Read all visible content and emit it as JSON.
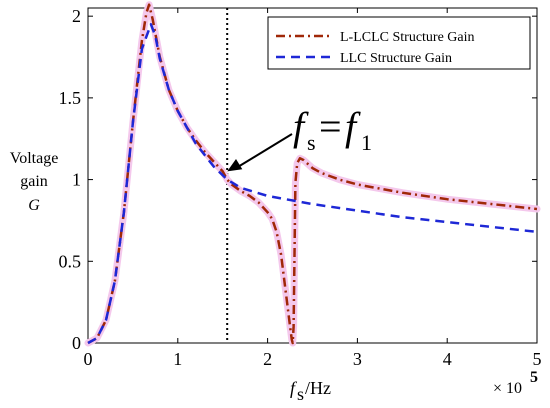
{
  "chart_data": {
    "type": "line",
    "xlim": [
      0,
      5
    ],
    "ylim": [
      0,
      2.05
    ],
    "x_ticks": [
      "0",
      "1",
      "2",
      "3",
      "4",
      "5"
    ],
    "y_ticks": [
      "0",
      "0.5",
      "1",
      "1.5",
      "2"
    ],
    "x_ticks_values": [
      0,
      1,
      2,
      3,
      4,
      5
    ],
    "y_ticks_values": [
      0,
      0.5,
      1,
      1.5,
      2
    ],
    "ylabel": {
      "line1": "Voltage",
      "line2": "gain",
      "line3": "G"
    },
    "xlabel": {
      "main": "f",
      "sub": "s",
      "unit": "/Hz"
    },
    "x_multiplier": {
      "prefix": "× 10",
      "exponent": "5"
    },
    "grid": false,
    "legend_position": "top-right",
    "series": [
      {
        "name": "L-LCLC Structure Gain",
        "color": "#a02808",
        "style": "dash-dot",
        "x": [
          0,
          0.1,
          0.2,
          0.3,
          0.4,
          0.5,
          0.6,
          0.65,
          0.68,
          0.72,
          0.8,
          0.9,
          1.0,
          1.1,
          1.2,
          1.3,
          1.4,
          1.5,
          1.55,
          1.6,
          1.7,
          1.8,
          1.9,
          2.0,
          2.05,
          2.1,
          2.15,
          2.2,
          2.25,
          2.27,
          2.28,
          2.29,
          2.31,
          2.33,
          2.36,
          2.4,
          2.5,
          2.6,
          2.8,
          3.0,
          3.5,
          4.0,
          4.5,
          5.0
        ],
        "y": [
          0,
          0.03,
          0.14,
          0.38,
          0.8,
          1.35,
          1.85,
          2.02,
          2.07,
          1.98,
          1.75,
          1.55,
          1.42,
          1.32,
          1.24,
          1.17,
          1.11,
          1.05,
          1.0,
          0.97,
          0.93,
          0.9,
          0.86,
          0.8,
          0.76,
          0.68,
          0.54,
          0.32,
          0.1,
          0.02,
          0.0,
          0.1,
          0.98,
          1.1,
          1.13,
          1.12,
          1.07,
          1.04,
          1.0,
          0.97,
          0.92,
          0.88,
          0.85,
          0.82
        ]
      },
      {
        "name": "LLC Structure Gain",
        "color": "#1e28d6",
        "style": "dashed",
        "x": [
          0,
          0.1,
          0.2,
          0.3,
          0.4,
          0.5,
          0.6,
          0.7,
          0.75,
          0.8,
          0.9,
          1.0,
          1.2,
          1.4,
          1.55,
          1.7,
          2.0,
          2.5,
          3.0,
          3.5,
          4.0,
          4.5,
          5.0
        ],
        "y": [
          0,
          0.03,
          0.14,
          0.38,
          0.8,
          1.35,
          1.8,
          1.95,
          1.88,
          1.74,
          1.55,
          1.42,
          1.22,
          1.08,
          1.0,
          0.95,
          0.9,
          0.85,
          0.81,
          0.77,
          0.74,
          0.71,
          0.68
        ]
      }
    ],
    "reference_line": {
      "x": 1.55,
      "color": "#000000",
      "style": "dotted"
    },
    "annotation": {
      "f_left": "f",
      "sub_left": "s",
      "equals": "=",
      "f_right": "f",
      "sub_right": "1",
      "arrow_target_x": 1.55,
      "arrow_target_y": 1.05
    }
  }
}
